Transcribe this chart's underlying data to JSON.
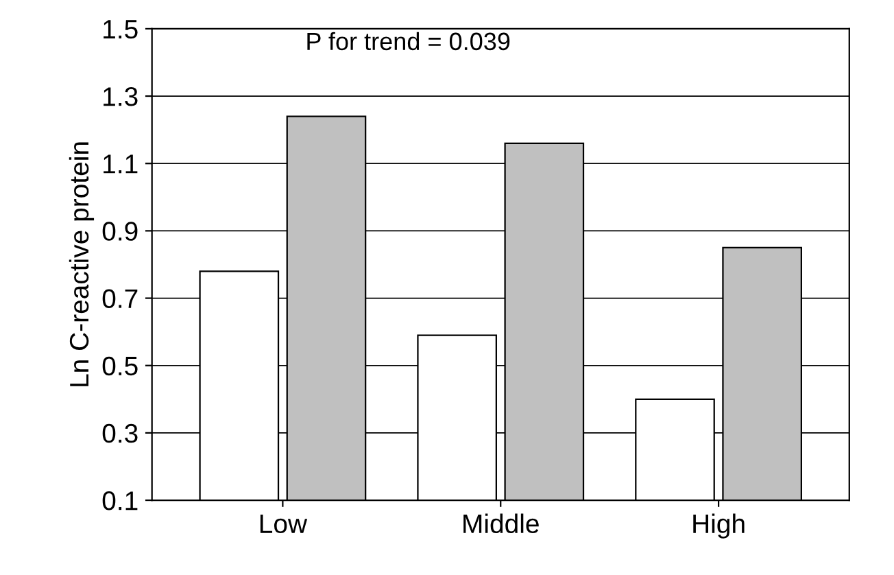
{
  "chart_data": {
    "type": "bar",
    "ylabel": "Ln C-reactive protein",
    "categories": [
      "Low",
      "Middle",
      "High"
    ],
    "series": [
      {
        "color": "#ffffff",
        "values": [
          0.78,
          0.59,
          0.4
        ]
      },
      {
        "color": "#c0c0c0",
        "values": [
          1.24,
          1.16,
          0.85
        ]
      }
    ],
    "ylim": [
      0.1,
      1.5
    ],
    "yticks": [
      0.1,
      0.3,
      0.5,
      0.7,
      0.9,
      1.1,
      1.3,
      1.5
    ],
    "grid": "y",
    "annotations": [
      "P for trend = 0.039"
    ]
  }
}
